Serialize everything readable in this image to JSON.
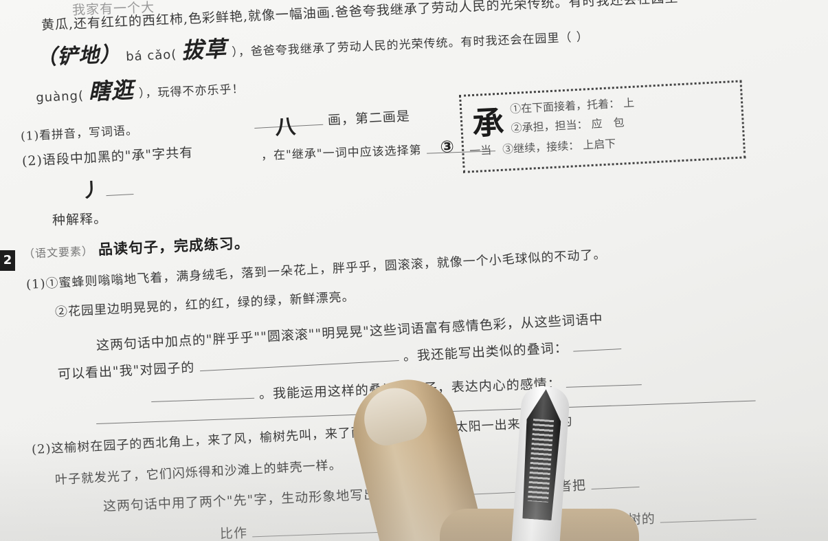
{
  "paragraph": {
    "line1": "我家有一个大",
    "line2_prefix": "黄瓜，还有红红的西红柿，色彩鲜艳，就像一幅油画。",
    "line2": "黄瓜,还有红红的西红柿,色彩鲜艳,就像一幅油画.爸爸夸我继承了劳动人民的光荣传统。有时我还会在园里",
    "line3_hw1": "（铲地）",
    "line3_pinyin": "bá cǎo(",
    "line3_hw2": "拔草",
    "line3_rest": "），爸爸夸我继承了劳动人民的光荣传统。有时我还会在园里（ ）",
    "line4_pinyin": "guàng(",
    "line4_hw": "瞎逛",
    "line4_rest": "），玩得不亦乐乎！"
  },
  "q1": {
    "label": "(1)看拼音，写词语。",
    "q2_label": "(2)语段中加黑的\"承\"字共有",
    "strokes_hw": "八",
    "strokes_suffix": "画，第二画是",
    "choose_prefix": "(2)语段中加黑的\"承\"字共有",
    "choose_line": "，在\"继承\"一词中应该选择第",
    "choose_hw": "③",
    "second_stroke_hw": "丿",
    "choose_suffix": "种解释。"
  },
  "dict_box": {
    "char": "承",
    "def1": "①在下面接着，托着：",
    "def1_tail": "上",
    "def2": "②承担，担当：",
    "def2_tail": "应　包",
    "def3_head": "一当",
    "def3": "③继续，接续：",
    "def3_tail": "上启下"
  },
  "q2": {
    "num": "2",
    "tag": "（语文要素）",
    "title": "品读句子，完成练习。",
    "s1_intro": "(1)①蜜蜂则嗡嗡地飞着，满身绒毛，落到一朵花上，胖乎乎，圆滚滚，就像一个小毛球似的不动了。",
    "s2": "②花园里边明晃晃的，红的红，绿的绿，新鲜漂亮。",
    "q_text1": "这两句话中加点的\"胖乎乎\"\"圆滚滚\"\"明晃晃\"这些词语富有感情色彩，从这些词语中",
    "q_text2": "可以看出\"我\"对园子的",
    "q_text3": "。我还能写出类似的叠词：",
    "q_text4": "。我能运用这样的叠词写句子，表达内心的感情：",
    "s3": "(2)这榆树在园子的西北角上，来了风，榆树先叫，来了雨，榆树先冒烟。太阳一出来，榆树的",
    "s3b": "叶子就发光了，它们闪烁得和沙滩上的蚌壳一样。",
    "q_b1": "这两句话中用了两个\"先\"字，生动形象地写出了榆树",
    "q_b2": "。作者把",
    "q_b3": "比作",
    "q_b4": "使读者感受到榆树的"
  }
}
